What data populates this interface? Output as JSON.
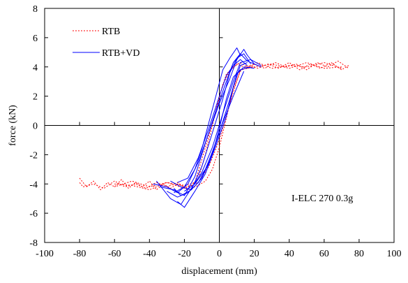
{
  "chart_data": {
    "type": "line",
    "title": "",
    "xlabel": "displacement (mm)",
    "ylabel": "force (kN)",
    "xlim": [
      -100,
      100
    ],
    "ylim": [
      -8,
      8
    ],
    "x_ticks": [
      -100,
      -80,
      -60,
      -40,
      -20,
      0,
      20,
      40,
      60,
      80,
      100
    ],
    "y_ticks": [
      -8,
      -6,
      -4,
      -2,
      0,
      2,
      4,
      6,
      8
    ],
    "grid": false,
    "legend_position": "top-left",
    "annotation": "I-ELC 270 0.3g",
    "series": [
      {
        "name": "RTB",
        "color": "#ff0000",
        "style": "dotted",
        "segments": [
          [
            [
              -80,
              -3.6
            ],
            [
              -76,
              -4.2
            ],
            [
              -72,
              -3.8
            ],
            [
              -68,
              -4.4
            ],
            [
              -64,
              -3.9
            ],
            [
              -60,
              -4.2
            ],
            [
              -56,
              -3.7
            ],
            [
              -52,
              -4.3
            ],
            [
              -48,
              -3.9
            ],
            [
              -44,
              -4.2
            ],
            [
              -40,
              -3.8
            ],
            [
              -36,
              -4.4
            ],
            [
              -32,
              -4.0
            ],
            [
              -28,
              -4.3
            ],
            [
              -24,
              -4.0
            ],
            [
              -20,
              -4.2
            ],
            [
              -16,
              -4.1
            ],
            [
              -12,
              -3.6
            ],
            [
              -8,
              -2.0
            ],
            [
              -4,
              0.0
            ],
            [
              0,
              2.0
            ],
            [
              4,
              3.5
            ],
            [
              8,
              4.0
            ],
            [
              12,
              4.3
            ],
            [
              16,
              4.0
            ],
            [
              20,
              4.2
            ],
            [
              26,
              3.9
            ],
            [
              32,
              4.3
            ],
            [
              38,
              4.0
            ],
            [
              44,
              4.2
            ],
            [
              50,
              3.8
            ],
            [
              56,
              4.3
            ],
            [
              62,
              4.0
            ],
            [
              68,
              4.4
            ],
            [
              74,
              3.9
            ]
          ],
          [
            [
              74,
              4.1
            ],
            [
              70,
              3.8
            ],
            [
              64,
              4.3
            ],
            [
              58,
              3.9
            ],
            [
              52,
              4.2
            ],
            [
              46,
              3.8
            ],
            [
              40,
              4.3
            ],
            [
              34,
              3.9
            ],
            [
              28,
              4.2
            ],
            [
              22,
              3.9
            ],
            [
              16,
              4.1
            ],
            [
              12,
              3.7
            ],
            [
              8,
              2.5
            ],
            [
              4,
              0.5
            ],
            [
              0,
              -1.5
            ],
            [
              -4,
              -3.0
            ],
            [
              -8,
              -3.8
            ],
            [
              -12,
              -4.1
            ],
            [
              -18,
              -4.4
            ],
            [
              -24,
              -3.9
            ],
            [
              -30,
              -4.2
            ],
            [
              -36,
              -3.9
            ],
            [
              -42,
              -4.3
            ],
            [
              -48,
              -4.0
            ],
            [
              -54,
              -4.2
            ],
            [
              -60,
              -3.8
            ],
            [
              -66,
              -4.3
            ],
            [
              -72,
              -4.0
            ],
            [
              -78,
              -4.2
            ],
            [
              -80,
              -3.9
            ]
          ],
          [
            [
              -60,
              -4.0
            ],
            [
              -50,
              -4.1
            ],
            [
              -40,
              -4.4
            ],
            [
              -30,
              -3.9
            ],
            [
              -20,
              -4.1
            ],
            [
              -14,
              -3.9
            ],
            [
              -8,
              -1.5
            ],
            [
              -2,
              1.0
            ],
            [
              2,
              2.8
            ],
            [
              6,
              3.7
            ],
            [
              10,
              4.2
            ],
            [
              16,
              3.9
            ],
            [
              22,
              4.3
            ],
            [
              30,
              3.9
            ],
            [
              40,
              4.1
            ],
            [
              50,
              4.0
            ],
            [
              60,
              4.3
            ],
            [
              70,
              3.9
            ]
          ],
          [
            [
              70,
              4.0
            ],
            [
              60,
              3.9
            ],
            [
              50,
              4.3
            ],
            [
              40,
              3.9
            ],
            [
              30,
              4.2
            ],
            [
              20,
              4.0
            ],
            [
              12,
              3.8
            ],
            [
              6,
              1.5
            ],
            [
              0,
              -1.0
            ],
            [
              -6,
              -2.8
            ],
            [
              -12,
              -3.9
            ],
            [
              -20,
              -4.3
            ],
            [
              -30,
              -3.9
            ],
            [
              -40,
              -4.2
            ],
            [
              -50,
              -3.8
            ],
            [
              -60,
              -4.2
            ]
          ]
        ]
      },
      {
        "name": "RTB+VD",
        "color": "#0000ff",
        "style": "solid",
        "segments": [
          [
            [
              -38,
              -4.0
            ],
            [
              -30,
              -4.2
            ],
            [
              -24,
              -4.6
            ],
            [
              -18,
              -4.0
            ],
            [
              -12,
              -2.5
            ],
            [
              -6,
              -0.5
            ],
            [
              0,
              1.5
            ],
            [
              6,
              3.2
            ],
            [
              10,
              4.5
            ],
            [
              14,
              5.2
            ],
            [
              16,
              4.8
            ],
            [
              20,
              4.2
            ],
            [
              24,
              4.0
            ]
          ],
          [
            [
              24,
              4.1
            ],
            [
              18,
              4.5
            ],
            [
              12,
              4.3
            ],
            [
              8,
              3.0
            ],
            [
              2,
              0.8
            ],
            [
              -4,
              -1.5
            ],
            [
              -10,
              -3.2
            ],
            [
              -16,
              -4.3
            ],
            [
              -22,
              -5.4
            ],
            [
              -28,
              -5.0
            ],
            [
              -32,
              -4.4
            ],
            [
              -36,
              -3.8
            ]
          ],
          [
            [
              -34,
              -4.2
            ],
            [
              -26,
              -4.4
            ],
            [
              -20,
              -4.8
            ],
            [
              -14,
              -3.5
            ],
            [
              -8,
              -1.2
            ],
            [
              -2,
              1.0
            ],
            [
              4,
              3.0
            ],
            [
              8,
              4.3
            ],
            [
              12,
              4.9
            ],
            [
              16,
              4.4
            ],
            [
              22,
              4.1
            ]
          ],
          [
            [
              20,
              3.9
            ],
            [
              14,
              4.0
            ],
            [
              10,
              3.5
            ],
            [
              6,
              1.8
            ],
            [
              0,
              -0.5
            ],
            [
              -6,
              -2.6
            ],
            [
              -12,
              -3.9
            ],
            [
              -18,
              -4.6
            ],
            [
              -24,
              -4.9
            ],
            [
              -30,
              -4.5
            ]
          ],
          [
            [
              -28,
              -3.8
            ],
            [
              -22,
              -4.2
            ],
            [
              -16,
              -4.4
            ],
            [
              -10,
              -2.8
            ],
            [
              -4,
              -0.5
            ],
            [
              2,
              1.8
            ],
            [
              6,
              3.6
            ],
            [
              10,
              4.6
            ],
            [
              14,
              4.9
            ],
            [
              18,
              4.2
            ]
          ],
          [
            [
              16,
              4.3
            ],
            [
              12,
              4.1
            ],
            [
              8,
              2.6
            ],
            [
              4,
              0.6
            ],
            [
              -2,
              -1.4
            ],
            [
              -8,
              -3.3
            ],
            [
              -14,
              -4.5
            ],
            [
              -20,
              -5.6
            ],
            [
              -24,
              -5.2
            ]
          ],
          [
            [
              -26,
              -4.6
            ],
            [
              -20,
              -4.2
            ],
            [
              -14,
              -3.0
            ],
            [
              -10,
              -1.6
            ],
            [
              -6,
              0.2
            ],
            [
              -2,
              2.0
            ],
            [
              2,
              3.8
            ],
            [
              6,
              4.6
            ],
            [
              10,
              5.3
            ],
            [
              12,
              4.8
            ]
          ],
          [
            [
              18,
              4.0
            ],
            [
              12,
              3.8
            ],
            [
              8,
              3.3
            ],
            [
              4,
              1.8
            ],
            [
              0,
              -0.2
            ],
            [
              -4,
              -2.0
            ],
            [
              -10,
              -3.6
            ],
            [
              -16,
              -4.4
            ],
            [
              -22,
              -4.8
            ],
            [
              -26,
              -4.3
            ]
          ],
          [
            [
              -24,
              -3.9
            ],
            [
              -18,
              -3.6
            ],
            [
              -12,
              -2.2
            ],
            [
              -6,
              -0.2
            ],
            [
              0,
              2.0
            ],
            [
              4,
              3.4
            ],
            [
              8,
              4.1
            ],
            [
              12,
              4.5
            ],
            [
              16,
              4.1
            ]
          ],
          [
            [
              14,
              3.7
            ],
            [
              8,
              2.0
            ],
            [
              2,
              0.2
            ],
            [
              -4,
              -1.8
            ],
            [
              -8,
              -3.0
            ],
            [
              -14,
              -4.0
            ],
            [
              -20,
              -4.5
            ]
          ]
        ]
      }
    ]
  }
}
